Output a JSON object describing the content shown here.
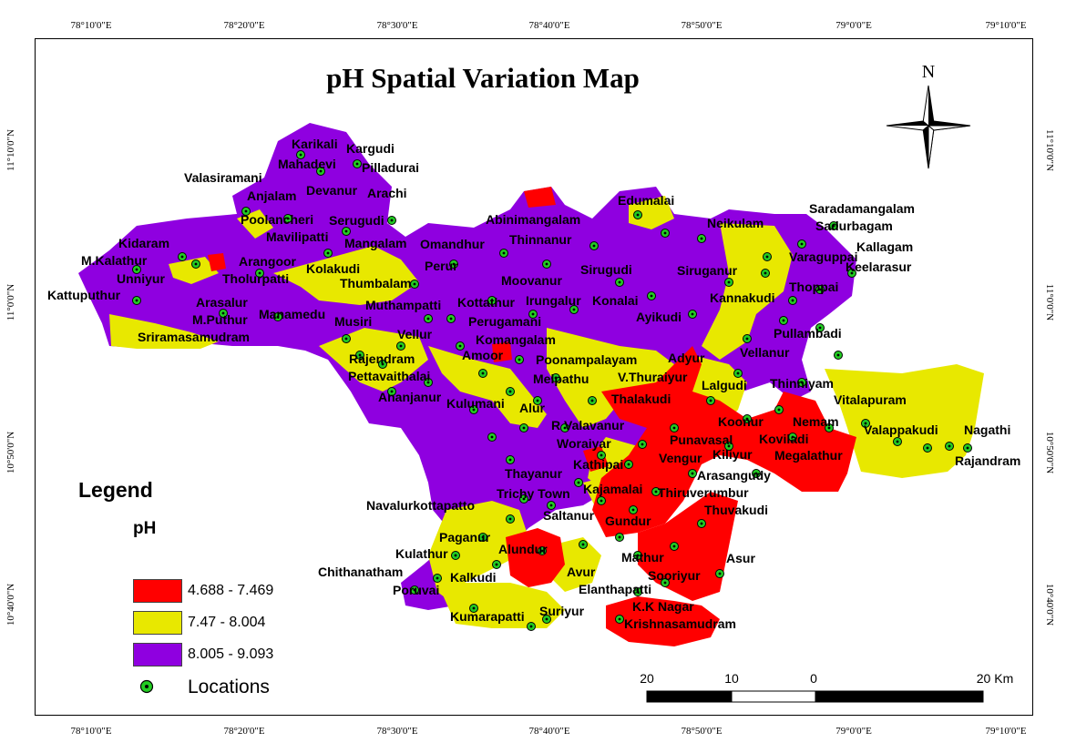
{
  "title": "pH Spatial Variation Map",
  "north_label": "N",
  "longitude_ticks": [
    "78°10'0\"E",
    "78°20'0\"E",
    "78°30'0\"E",
    "78°40'0\"E",
    "78°50'0\"E",
    "79°0'0\"E",
    "79°10'0\"E"
  ],
  "latitude_ticks": [
    "11°10'0\"N",
    "11°0'0\"N",
    "10°50'0\"N",
    "10°40'0\"N"
  ],
  "legend": {
    "title": "Legend",
    "subtitle": "pH",
    "classes": [
      {
        "label": "4.688 - 7.469",
        "color": "#ff0000"
      },
      {
        "label": "7.47 - 8.004",
        "color": "#e8e800"
      },
      {
        "label": "8.005 - 9.093",
        "color": "#8f00e0"
      }
    ],
    "locations_label": "Locations",
    "locations_color": "#22cc22"
  },
  "scale_bar": {
    "labels": [
      "20",
      "10",
      "0",
      "20 Km"
    ]
  },
  "places": [
    "Karikali",
    "Kargudi",
    "Mahadevi",
    "Pilladurai",
    "Valasiramani",
    "Devanur",
    "Arachi",
    "Anjalam",
    "Poolancheri",
    "Serugudi",
    "Mavilipatti",
    "Mangalam",
    "Omandhur",
    "Kidaram",
    "M.Kalathur",
    "Arangoor",
    "Kolakudi",
    "Unniyur",
    "Tholurpatti",
    "Thumbalam",
    "Perur",
    "Kattuputhur",
    "Arasalur",
    "M.Puthur",
    "Manamedu",
    "Muthampatti",
    "Kottathur",
    "Sriramasamudram",
    "Musiri",
    "Vellur",
    "Abinimangalam",
    "Thinnanur",
    "Edumalai",
    "Neikulam",
    "Saradamangalam",
    "Sadurbagam",
    "Kallagam",
    "Varaguppai",
    "Keelarasur",
    "Moovanur",
    "Sirugudi",
    "Siruganur",
    "Thoppai",
    "Irungalur",
    "Konalai",
    "Kannakudi",
    "Ayikudi",
    "Perugamani",
    "Pullambadi",
    "Komangalam",
    "Vellanur",
    "Rajendram",
    "Amoor",
    "Poonampalayam",
    "Adyur",
    "Pettavaithalai",
    "Melpathu",
    "V.Thuraiyur",
    "Lalgudi",
    "Thinniyam",
    "Vitalapuram",
    "Ananjanur",
    "Thalakudi",
    "Kulumani",
    "Alur",
    "Koonur",
    "Nemam",
    "Valappakudi",
    "Nagathi",
    "Punavasal",
    "Koviladi",
    "Megalathur",
    "Rajandram",
    "R Valavanur",
    "Woraiyar",
    "Kiliyur",
    "Vengur",
    "Kathipai",
    "Thayanur",
    "Arasangudy",
    "Navalurkottapatto",
    "Trichy Town",
    "Kajamalai",
    "Thiruverumbur",
    "Thuvakudi",
    "Saltanur",
    "Gundur",
    "Paganur",
    "Alundur",
    "Mathur",
    "Asur",
    "Kulathur",
    "Chithanatham",
    "Kalkudi",
    "Avur",
    "Sooriyur",
    "Poruvai",
    "Elanthapatti",
    "K.K Nagar",
    "Kumarapatti",
    "Suriyur",
    "Krishnasamudram"
  ]
}
